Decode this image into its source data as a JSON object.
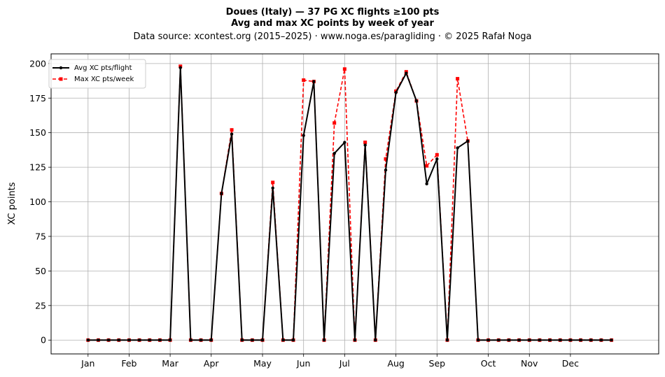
{
  "chart_data": {
    "type": "line",
    "title": "Doues (Italy)  —  37 PG XC flights ≥100 pts",
    "subtitle": "Avg and max XC points by week of year",
    "source": "Data source: xcontest.org (2015–2025)  ·  www.noga.es/paragliding  ·  © 2025 Rafał Noga",
    "xlabel": "",
    "ylabel": "XC points",
    "xlim": [
      -3.6,
      55.6
    ],
    "ylim": [
      -10,
      207
    ],
    "yticks": [
      0,
      25,
      50,
      75,
      100,
      125,
      150,
      175,
      200
    ],
    "xticks": [
      {
        "pos": 0,
        "label": "Jan"
      },
      {
        "pos": 4,
        "label": "Feb"
      },
      {
        "pos": 8,
        "label": "Mar"
      },
      {
        "pos": 12,
        "label": "Apr"
      },
      {
        "pos": 17,
        "label": "May"
      },
      {
        "pos": 21,
        "label": "Jun"
      },
      {
        "pos": 25,
        "label": "Jul"
      },
      {
        "pos": 30,
        "label": "Aug"
      },
      {
        "pos": 34,
        "label": "Sep"
      },
      {
        "pos": 39,
        "label": "Oct"
      },
      {
        "pos": 43,
        "label": "Nov"
      },
      {
        "pos": 47,
        "label": "Dec"
      }
    ],
    "grid": true,
    "legend_position": "top-left",
    "x": [
      0,
      1,
      2,
      3,
      4,
      5,
      6,
      7,
      8,
      9,
      10,
      11,
      12,
      13,
      14,
      15,
      16,
      17,
      18,
      19,
      20,
      21,
      22,
      23,
      24,
      25,
      26,
      27,
      28,
      29,
      30,
      31,
      32,
      33,
      34,
      35,
      36,
      37,
      38,
      39,
      40,
      41,
      42,
      43,
      44,
      45,
      46,
      47,
      48,
      49,
      50,
      51
    ],
    "series": [
      {
        "name": "Avg XC pts/flight",
        "color": "#000000",
        "style": "solid-circle",
        "values": [
          0,
          0,
          0,
          0,
          0,
          0,
          0,
          0,
          0,
          197,
          0,
          0,
          0,
          106,
          149,
          0,
          0,
          0,
          110,
          0,
          0,
          148,
          187,
          0,
          135,
          143,
          0,
          141,
          0,
          123,
          179,
          193,
          173,
          113,
          131,
          0,
          139,
          144,
          0,
          0,
          0,
          0,
          0,
          0,
          0,
          0,
          0,
          0,
          0,
          0,
          0,
          0
        ]
      },
      {
        "name": "Max XC pts/week",
        "color": "#ff0000",
        "style": "dashed-square",
        "values": [
          0,
          0,
          0,
          0,
          0,
          0,
          0,
          0,
          0,
          198,
          0,
          0,
          0,
          106,
          152,
          0,
          0,
          0,
          114,
          0,
          0,
          188,
          187,
          0,
          157,
          196,
          0,
          143,
          0,
          131,
          180,
          194,
          173,
          126,
          134,
          0,
          189,
          144,
          0,
          0,
          0,
          0,
          0,
          0,
          0,
          0,
          0,
          0,
          0,
          0,
          0,
          0
        ]
      }
    ]
  }
}
